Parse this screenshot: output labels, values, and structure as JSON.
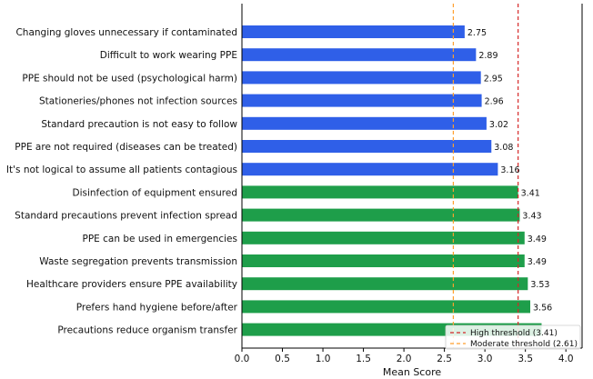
{
  "chart_data": {
    "type": "bar",
    "orientation": "horizontal",
    "title": "",
    "xlabel": "Mean Score",
    "ylabel": "",
    "xlim": [
      0,
      4.2
    ],
    "xticks": [
      "0.0",
      "0.5",
      "1.0",
      "1.5",
      "2.0",
      "2.5",
      "3.0",
      "3.5",
      "4.0"
    ],
    "grid": false,
    "legend_position": "bottom-right",
    "categories": [
      "Changing gloves unnecessary if contaminated",
      "Difficult to work wearing PPE",
      "PPE should not be used (psychological harm)",
      "Stationeries/phones not infection sources",
      "Standard precaution is not easy to follow",
      "PPE are not required (diseases can be treated)",
      "It's not logical to assume all patients contagious",
      "Disinfection of equipment ensured",
      "Standard precautions prevent infection spread",
      "PPE can be used in emergencies",
      "Waste segregation prevents transmission",
      "Healthcare providers ensure PPE availability",
      "Prefers hand hygiene before/after",
      "Precautions reduce organism transfer"
    ],
    "values": [
      2.75,
      2.89,
      2.95,
      2.96,
      3.02,
      3.08,
      3.16,
      3.41,
      3.43,
      3.49,
      3.49,
      3.53,
      3.56,
      3.7
    ],
    "value_labels": [
      "2.75",
      "2.89",
      "2.95",
      "2.96",
      "3.02",
      "3.08",
      "3.16",
      "3.41",
      "3.43",
      "3.49",
      "3.49",
      "3.53",
      "3.56",
      ""
    ],
    "bar_colors": [
      "#2f5fe8",
      "#2f5fe8",
      "#2f5fe8",
      "#2f5fe8",
      "#2f5fe8",
      "#2f5fe8",
      "#2f5fe8",
      "#1e9e4a",
      "#1e9e4a",
      "#1e9e4a",
      "#1e9e4a",
      "#1e9e4a",
      "#1e9e4a",
      "#1e9e4a"
    ],
    "thresholds": [
      {
        "value": 3.41,
        "color": "#d62728",
        "label": "High threshold (3.41)"
      },
      {
        "value": 2.61,
        "color": "#ff9f2e",
        "label": "Moderate threshold (2.61)"
      }
    ]
  }
}
